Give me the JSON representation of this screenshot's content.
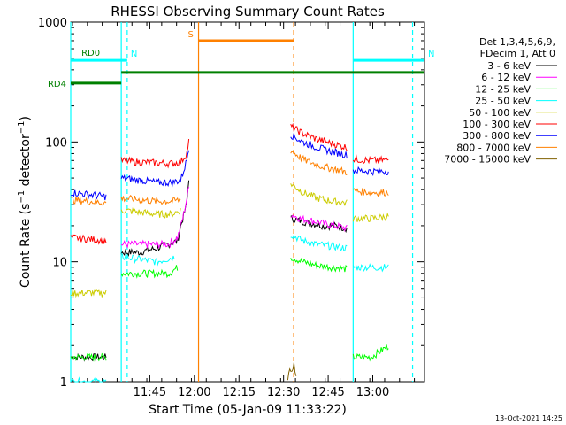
{
  "chart_data": {
    "type": "line",
    "title": "RHESSI Observing Summary Count Rates",
    "xlabel": "Start Time (05-Jan-09 11:33:22)",
    "ylabel": "Count Rate (s⁻¹ detector⁻¹)",
    "ylabel_main": "Count Rate (s",
    "ylabel_mid": " detector",
    "ylabel_end": ")",
    "sup": "−1",
    "ylog": true,
    "ylim": [
      1,
      1000
    ],
    "xlim_min": [
      -15,
      104
    ],
    "x_unit": "minutes after 11:33:22",
    "xticks": [
      {
        "min": 11.6,
        "label": "11:45"
      },
      {
        "min": 26.6,
        "label": "12:00"
      },
      {
        "min": 41.6,
        "label": "12:15"
      },
      {
        "min": 56.6,
        "label": "12:30"
      },
      {
        "min": 71.6,
        "label": "12:45"
      },
      {
        "min": 86.6,
        "label": "13:00"
      }
    ],
    "yticks": [
      {
        "v": 1,
        "label": "1"
      },
      {
        "v": 10,
        "label": "10"
      },
      {
        "v": 100,
        "label": "100"
      },
      {
        "v": 1000,
        "label": "1000"
      }
    ],
    "legend_header": [
      "Det 1,3,4,5,6,9,",
      "FDecim 1, Att 0"
    ],
    "legend_placement": "right",
    "series": [
      {
        "name": "3 - 6 keV",
        "color": "#000000",
        "segments": [
          {
            "pts": [
              [
                -15,
                1.6
              ],
              [
                -3,
                1.6
              ]
            ]
          },
          {
            "pts": [
              [
                2,
                12
              ],
              [
                8,
                12
              ],
              [
                14,
                13
              ],
              [
                21,
                15
              ],
              [
                22,
                20
              ],
              [
                24,
                30
              ],
              [
                25,
                60
              ]
            ]
          },
          {
            "pts": [
              [
                59,
                23
              ],
              [
                62,
                22
              ],
              [
                66,
                21
              ],
              [
                70,
                20
              ],
              [
                74,
                20
              ],
              [
                78,
                19
              ]
            ]
          }
        ]
      },
      {
        "name": "6 - 12 keV",
        "color": "#ff00ff",
        "segments": [
          {
            "pts": [
              [
                2,
                14
              ],
              [
                10,
                14
              ],
              [
                18,
                14
              ],
              [
                21,
                16
              ],
              [
                23,
                25
              ],
              [
                25,
                45
              ]
            ]
          },
          {
            "pts": [
              [
                59,
                25
              ],
              [
                62,
                23
              ],
              [
                66,
                22
              ],
              [
                70,
                21
              ],
              [
                74,
                20
              ],
              [
                78,
                19
              ]
            ]
          }
        ]
      },
      {
        "name": "12 - 25 keV",
        "color": "#00ff00",
        "segments": [
          {
            "pts": [
              [
                -15,
                1.6
              ],
              [
                -3,
                1.6
              ]
            ]
          },
          {
            "pts": [
              [
                2,
                8
              ],
              [
                8,
                8
              ],
              [
                14,
                8
              ],
              [
                18,
                8
              ],
              [
                21,
                9
              ]
            ]
          },
          {
            "pts": [
              [
                59,
                11
              ],
              [
                63,
                10
              ],
              [
                68,
                9.3
              ],
              [
                73,
                9
              ],
              [
                78,
                8.7
              ]
            ]
          },
          {
            "pts": [
              [
                80,
                1.6
              ],
              [
                86,
                1.6
              ],
              [
                92,
                2
              ]
            ]
          }
        ]
      },
      {
        "name": "25 - 50 keV",
        "color": "#00ffff",
        "segments": [
          {
            "pts": [
              [
                -15,
                1
              ],
              [
                -3,
                1
              ]
            ]
          },
          {
            "pts": [
              [
                2,
                11
              ],
              [
                8,
                10.5
              ],
              [
                14,
                10
              ],
              [
                20,
                11
              ]
            ]
          },
          {
            "pts": [
              [
                59,
                17
              ],
              [
                63,
                15
              ],
              [
                68,
                14
              ],
              [
                73,
                13.5
              ],
              [
                78,
                13
              ]
            ]
          },
          {
            "pts": [
              [
                80,
                9
              ],
              [
                86,
                9
              ],
              [
                92,
                9
              ]
            ]
          }
        ]
      },
      {
        "name": "50 - 100 keV",
        "color": "#cccc00",
        "segments": [
          {
            "pts": [
              [
                -15,
                5.5
              ],
              [
                -3,
                5.5
              ]
            ]
          },
          {
            "pts": [
              [
                2,
                27
              ],
              [
                8,
                26
              ],
              [
                14,
                25
              ],
              [
                19,
                25
              ],
              [
                22,
                27
              ]
            ]
          },
          {
            "pts": [
              [
                59,
                45
              ],
              [
                63,
                38
              ],
              [
                68,
                34
              ],
              [
                73,
                32
              ],
              [
                78,
                31
              ]
            ]
          },
          {
            "pts": [
              [
                80,
                23
              ],
              [
                86,
                23
              ],
              [
                92,
                24
              ]
            ]
          }
        ]
      },
      {
        "name": "100 - 300 keV",
        "color": "#ff0000",
        "segments": [
          {
            "pts": [
              [
                -15,
                16
              ],
              [
                -3,
                15
              ]
            ]
          },
          {
            "pts": [
              [
                2,
                70
              ],
              [
                8,
                68
              ],
              [
                14,
                67
              ],
              [
                19,
                66
              ],
              [
                22,
                68
              ],
              [
                24,
                80
              ],
              [
                25,
                110
              ]
            ]
          },
          {
            "pts": [
              [
                59,
                135
              ],
              [
                63,
                118
              ],
              [
                68,
                105
              ],
              [
                73,
                97
              ],
              [
                78,
                90
              ]
            ]
          },
          {
            "pts": [
              [
                80,
                72
              ],
              [
                86,
                70
              ],
              [
                92,
                71
              ]
            ]
          }
        ]
      },
      {
        "name": "300 - 800 keV",
        "color": "#0000ff",
        "segments": [
          {
            "pts": [
              [
                -15,
                38
              ],
              [
                -3,
                35
              ]
            ]
          },
          {
            "pts": [
              [
                2,
                50
              ],
              [
                8,
                48
              ],
              [
                14,
                46
              ],
              [
                19,
                46
              ],
              [
                22,
                48
              ],
              [
                24,
                70
              ],
              [
                25,
                100
              ]
            ]
          },
          {
            "pts": [
              [
                59,
                115
              ],
              [
                63,
                100
              ],
              [
                68,
                90
              ],
              [
                73,
                83
              ],
              [
                78,
                78
              ]
            ]
          },
          {
            "pts": [
              [
                80,
                58
              ],
              [
                86,
                57
              ],
              [
                92,
                57
              ]
            ]
          }
        ]
      },
      {
        "name": "800 - 7000 keV",
        "color": "#ff8000",
        "segments": [
          {
            "pts": [
              [
                -15,
                33
              ],
              [
                -3,
                31
              ]
            ]
          },
          {
            "pts": [
              [
                2,
                34
              ],
              [
                8,
                33
              ],
              [
                14,
                32
              ],
              [
                19,
                32
              ],
              [
                22,
                33
              ]
            ]
          },
          {
            "pts": [
              [
                59,
                85
              ],
              [
                63,
                72
              ],
              [
                68,
                64
              ],
              [
                73,
                60
              ],
              [
                78,
                56
              ]
            ]
          },
          {
            "pts": [
              [
                80,
                39
              ],
              [
                86,
                38
              ],
              [
                92,
                38
              ]
            ]
          }
        ]
      },
      {
        "name": "7000 - 15000 keV",
        "color": "#806000",
        "segments": [
          {
            "pts": [
              [
                58,
                1.1
              ],
              [
                60,
                1.4
              ],
              [
                61,
                1
              ]
            ]
          }
        ]
      }
    ],
    "annotations": {
      "flags": [
        {
          "label": "N",
          "color": "#00ffff",
          "from": -15,
          "to": 4,
          "level": 480
        },
        {
          "label": "N",
          "color": "#00ffff",
          "from": 80,
          "to": 104,
          "level": 480
        },
        {
          "label": "S",
          "color": "#ff8000",
          "from": 28,
          "to": 60,
          "level": 700
        },
        {
          "label": "RD0",
          "color": "#008000",
          "from": -12,
          "to": -5,
          "level": 560
        },
        {
          "label": "RD4",
          "color": "#008000",
          "from": -15,
          "to": 2,
          "level": 310
        }
      ],
      "rd0_line": {
        "color": "#008000",
        "from": 2,
        "to": 104,
        "level": 380
      },
      "vlines": [
        {
          "min": -15,
          "color": "#00ffff",
          "style": "solid"
        },
        {
          "min": 2,
          "color": "#00ffff",
          "style": "solid"
        },
        {
          "min": 4,
          "color": "#00ffff",
          "style": "dashed"
        },
        {
          "min": 28,
          "color": "#ff8000",
          "style": "solid"
        },
        {
          "min": 60,
          "color": "#ff8000",
          "style": "dashed"
        },
        {
          "min": 80,
          "color": "#00ffff",
          "style": "solid"
        },
        {
          "min": 100,
          "color": "#00ffff",
          "style": "dashed"
        }
      ]
    }
  },
  "footer_date": "13-Oct-2021 14:25"
}
